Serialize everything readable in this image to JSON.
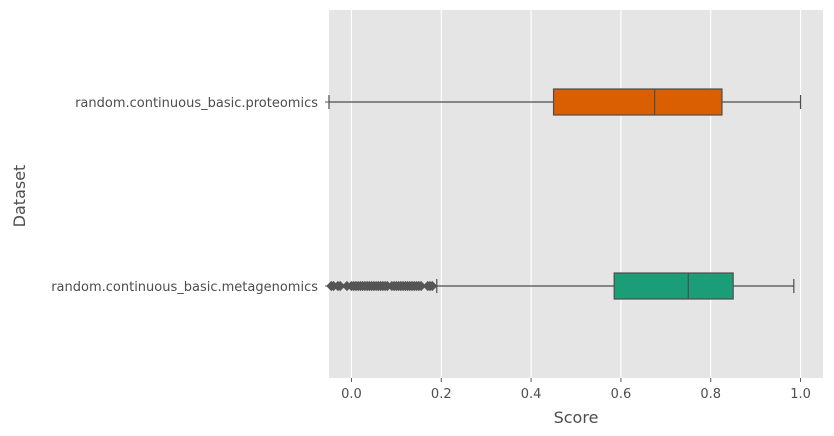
{
  "chart_data": {
    "type": "box",
    "orientation": "horizontal",
    "xlabel": "Score",
    "ylabel": "Dataset",
    "xlim": [
      -0.05,
      1.05
    ],
    "xticks": [
      0.0,
      0.2,
      0.4,
      0.6,
      0.8,
      1.0
    ],
    "xtick_labels": [
      "0.0",
      "0.2",
      "0.4",
      "0.6",
      "0.8",
      "1.0"
    ],
    "grid": true,
    "background": "#e5e5e5",
    "categories": [
      "random.continuous_basic.proteomics",
      "random.continuous_basic.metagenomics"
    ],
    "boxes": [
      {
        "label": "random.continuous_basic.proteomics",
        "color": "#d95f02",
        "whisker_low": -0.05,
        "q1": 0.45,
        "median": 0.675,
        "q3": 0.825,
        "whisker_high": 1.0,
        "outliers": []
      },
      {
        "label": "random.continuous_basic.metagenomics",
        "color": "#1b9e77",
        "whisker_low": 0.19,
        "q1": 0.585,
        "median": 0.75,
        "q3": 0.85,
        "whisker_high": 0.985,
        "outliers": [
          -0.045,
          -0.04,
          -0.03,
          -0.025,
          -0.01,
          0.0,
          0.005,
          0.01,
          0.015,
          0.02,
          0.025,
          0.03,
          0.035,
          0.04,
          0.045,
          0.05,
          0.055,
          0.06,
          0.065,
          0.07,
          0.075,
          0.08,
          0.09,
          0.095,
          0.1,
          0.105,
          0.11,
          0.115,
          0.12,
          0.125,
          0.13,
          0.135,
          0.14,
          0.145,
          0.15,
          0.155,
          0.17,
          0.175,
          0.18
        ]
      }
    ]
  }
}
